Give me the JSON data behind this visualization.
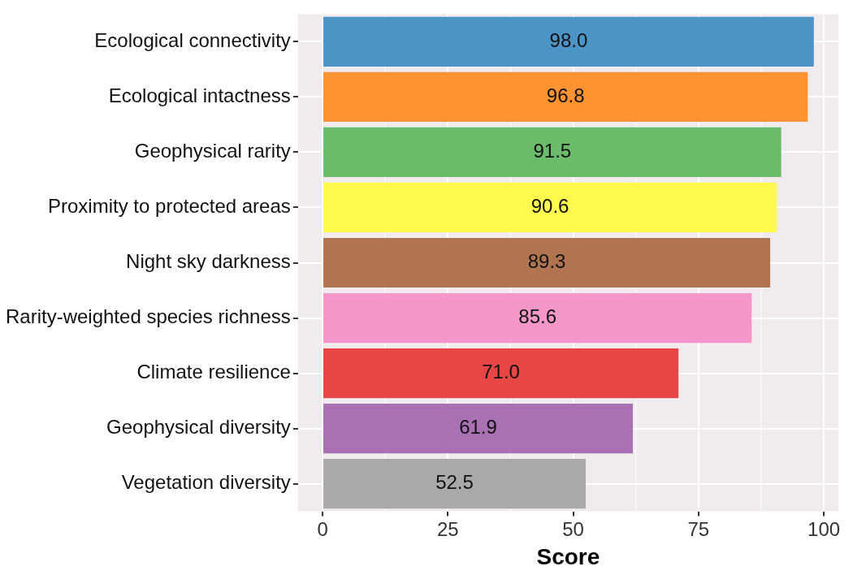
{
  "chart_data": {
    "type": "bar",
    "orientation": "horizontal",
    "xlabel": "Score",
    "categories": [
      "Ecological connectivity",
      "Ecological intactness",
      "Geophysical rarity",
      "Proximity to protected areas",
      "Night sky darkness",
      "Rarity-weighted species richness",
      "Climate resilience",
      "Geophysical diversity",
      "Vegetation diversity"
    ],
    "values": [
      98,
      96.8,
      91.5,
      90.6,
      89.3,
      85.6,
      71,
      61.9,
      52.5
    ],
    "value_labels": [
      "98.0",
      "96.8",
      "91.5",
      "90.6",
      "89.3",
      "85.6",
      "71.0",
      "61.9",
      "52.5"
    ],
    "colors": [
      "#4c93c6",
      "#ff9331",
      "#6bbb6a",
      "#fffa4d",
      "#b07450",
      "#f596c8",
      "#e84545",
      "#a970b3",
      "#aaa8aa"
    ],
    "xlim": [
      -4.9,
      102.9
    ],
    "xticks": [
      0,
      25,
      50,
      75,
      100
    ],
    "grid": true,
    "legend": false
  }
}
